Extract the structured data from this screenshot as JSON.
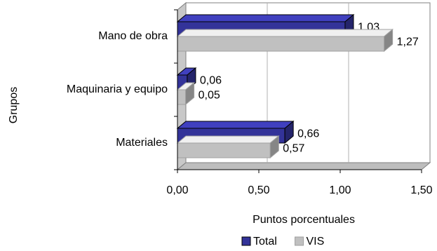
{
  "chart_data": {
    "type": "bar",
    "orientation": "horizontal",
    "style": "3d",
    "title": "",
    "xlabel": "Puntos porcentuales",
    "ylabel": "Grupos",
    "categories": [
      "Mano de obra",
      "Maquinaria y equipo",
      "Materiales"
    ],
    "series": [
      {
        "name": "Total",
        "values": [
          1.03,
          0.06,
          0.66
        ],
        "labels": [
          "1,03",
          "0,06",
          "0,66"
        ],
        "color": "#333399"
      },
      {
        "name": "VIS",
        "values": [
          1.27,
          0.05,
          0.57
        ],
        "labels": [
          "1,27",
          "0,05",
          "0,57"
        ],
        "color": "#c0c0c0"
      }
    ],
    "xlim": [
      0,
      1.5
    ],
    "xticks": [
      "0,00",
      "0,50",
      "1,00",
      "1,50"
    ],
    "grid": true,
    "legend_position": "bottom"
  }
}
